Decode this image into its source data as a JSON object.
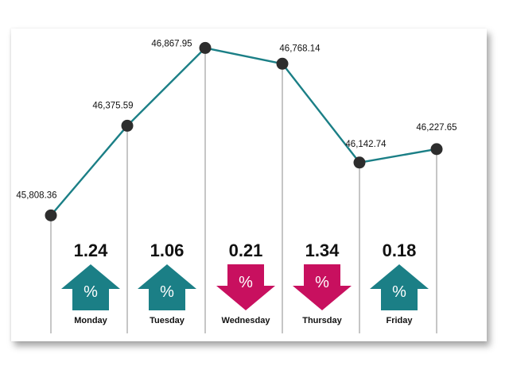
{
  "chart_data": {
    "type": "line",
    "categories": [
      "Monday",
      "Tuesday",
      "Wednesday",
      "Thursday",
      "Friday",
      ""
    ],
    "values": [
      45808.36,
      46375.59,
      46867.95,
      46768.14,
      46142.74,
      46227.65
    ],
    "value_labels": [
      "45,808.36",
      "46,375.59",
      "46,867.95",
      "46,768.14",
      "46,142.74",
      "46,227.65"
    ],
    "ylim": [
      45800,
      46870
    ],
    "grid": false,
    "daily_change": [
      {
        "day": "Monday",
        "change": "1.24",
        "direction": "up"
      },
      {
        "day": "Tuesday",
        "change": "1.06",
        "direction": "up"
      },
      {
        "day": "Wednesday",
        "change": "0.21",
        "direction": "down"
      },
      {
        "day": "Thursday",
        "change": "1.34",
        "direction": "down"
      },
      {
        "day": "Friday",
        "change": "0.18",
        "direction": "up"
      }
    ],
    "arrow_symbol": "%"
  },
  "colors": {
    "line": "#1b7f86",
    "marker": "#2d2d2d",
    "up": "#1b7f86",
    "down": "#c8105f",
    "divider": "#8c8c8c"
  }
}
